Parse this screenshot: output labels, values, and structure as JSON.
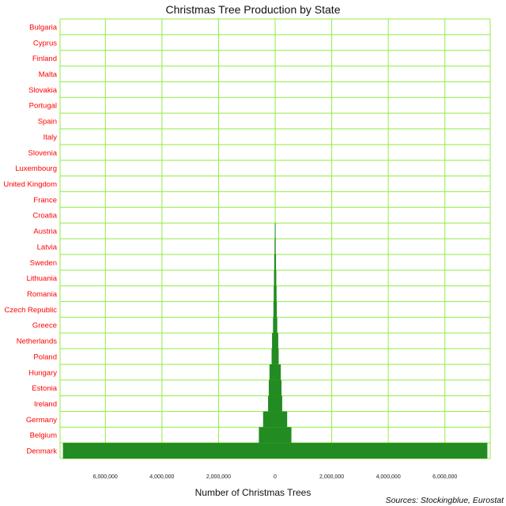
{
  "chart_data": {
    "type": "bar",
    "orientation": "horizontal-pyramid",
    "title": "Christmas Tree Production by State",
    "xlabel": "Number of Christmas Trees",
    "ylabel": "",
    "source": "Sources: Stockingblue, Eurostat",
    "categories": [
      "Bulgaria",
      "Cyprus",
      "Finland",
      "Malta",
      "Slovakia",
      "Portugal",
      "Spain",
      "Italy",
      "Slovenia",
      "Luxembourg",
      "United Kingdom",
      "France",
      "Croatia",
      "Austria",
      "Latvia",
      "Sweden",
      "Lithuania",
      "Romania",
      "Czech Republic",
      "Greece",
      "Netherlands",
      "Poland",
      "Hungary",
      "Estonia",
      "Ireland",
      "Germany",
      "Belgium",
      "Denmark"
    ],
    "values": [
      0,
      0,
      0,
      0,
      0,
      0,
      0,
      0,
      0,
      0,
      0,
      0,
      0,
      20000,
      40000,
      60000,
      80000,
      100000,
      120000,
      150000,
      220000,
      250000,
      400000,
      450000,
      500000,
      850000,
      1150000,
      15000000
    ],
    "xlim": [
      -7600000,
      7600000
    ],
    "xticks": [
      -6000000,
      -4000000,
      -2000000,
      0,
      2000000,
      4000000,
      6000000
    ],
    "xtick_labels": [
      "6,000,000",
      "4,000,000",
      "2,000,000",
      "0",
      "2,000,000",
      "4,000,000",
      "6,000,000"
    ],
    "grid": true,
    "colors": {
      "bar": "#228b22",
      "grid": "#90ee40",
      "category_label": "#ff0000"
    }
  }
}
